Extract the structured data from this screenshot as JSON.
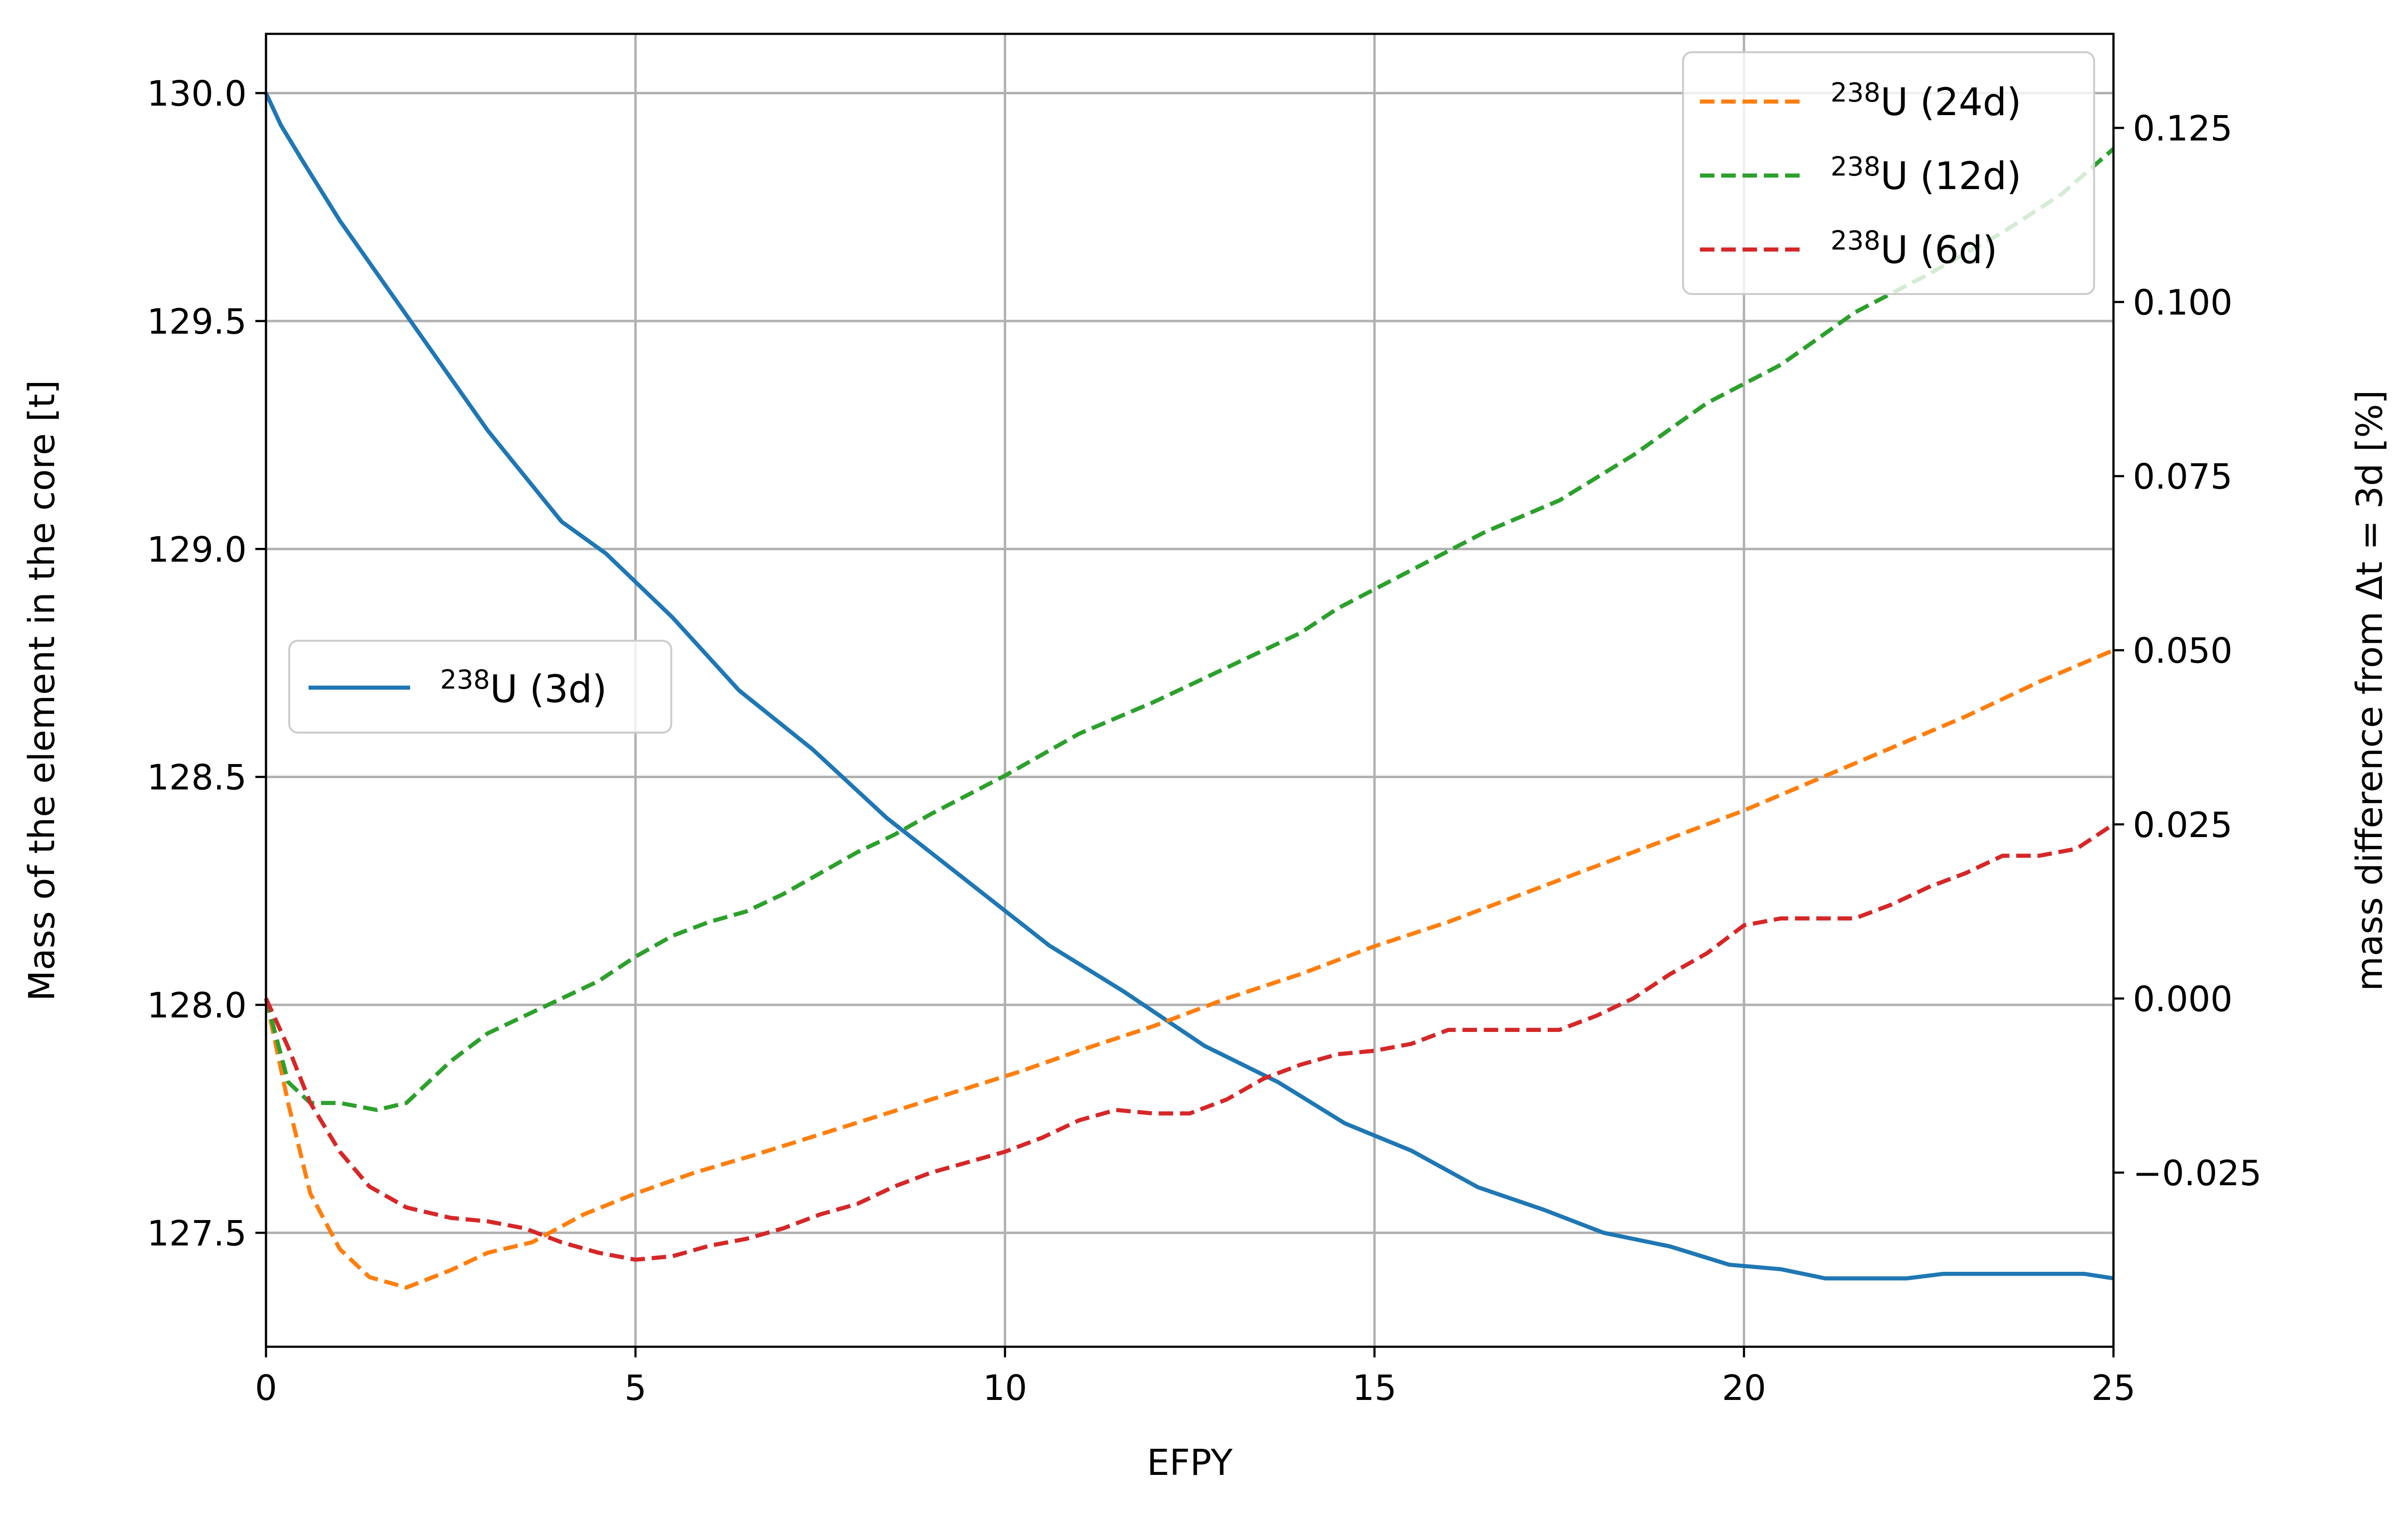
{
  "chart_data": {
    "type": "line",
    "xlabel": "EFPY",
    "ylabel_left": "Mass of the element in the core [t]",
    "ylabel_right": "mass difference from Δt = 3d [%]",
    "xlim": [
      0,
      25
    ],
    "ylim_left": [
      127.25,
      130.13
    ],
    "ylim_right": [
      -0.05,
      0.1385
    ],
    "x_ticks": [
      0,
      5,
      10,
      15,
      20,
      25
    ],
    "x_tick_labels": [
      "0",
      "5",
      "10",
      "15",
      "20",
      "25"
    ],
    "y_left_ticks": [
      127.5,
      128.0,
      128.5,
      129.0,
      129.5,
      130.0
    ],
    "y_left_tick_labels": [
      "127.5",
      "128.0",
      "128.5",
      "129.0",
      "129.5",
      "130.0"
    ],
    "y_right_ticks": [
      -0.025,
      0.0,
      0.025,
      0.05,
      0.075,
      0.1,
      0.125
    ],
    "y_right_tick_labels": [
      "−0.025",
      "0.000",
      "0.025",
      "0.050",
      "0.075",
      "0.100",
      "0.125"
    ],
    "grid": true,
    "legend_left": {
      "placement": "center-left",
      "entries": [
        "238U (3d)"
      ]
    },
    "legend_right": {
      "placement": "upper-right",
      "entries": [
        "238U (24d)",
        "238U (12d)",
        "238U (6d)"
      ]
    },
    "series": [
      {
        "name": "238U (3d)",
        "axis": "left",
        "style": "solid",
        "color": "#1f77b4",
        "x": [
          0,
          0.2,
          0.5,
          1,
          2,
          3,
          4,
          4.6,
          5.5,
          6.4,
          7.4,
          8.4,
          9.5,
          10.6,
          11.6,
          12.7,
          13.7,
          14.6,
          15.5,
          16.4,
          17.3,
          18.1,
          19,
          19.8,
          20.5,
          21.1,
          21.7,
          22.2,
          22.7,
          23.2,
          23.7,
          24.2,
          24.6,
          25
        ],
        "y": [
          130.0,
          129.93,
          129.85,
          129.72,
          129.49,
          129.26,
          129.06,
          128.99,
          128.85,
          128.69,
          128.56,
          128.41,
          128.27,
          128.13,
          128.03,
          127.91,
          127.83,
          127.74,
          127.68,
          127.6,
          127.55,
          127.5,
          127.47,
          127.43,
          127.42,
          127.4,
          127.4,
          127.4,
          127.41,
          127.41,
          127.41,
          127.41,
          127.41,
          127.4
        ]
      },
      {
        "name": "238U (24d)",
        "axis": "right",
        "style": "dashed",
        "color": "#ff7f0e",
        "x": [
          0,
          0.3,
          0.6,
          1,
          1.4,
          1.9,
          2.5,
          3,
          3.6,
          4.3,
          5,
          5.8,
          6.6,
          7.5,
          8.4,
          9.3,
          10.2,
          11,
          12,
          13,
          14,
          15,
          16,
          17,
          18,
          19,
          20,
          21,
          22,
          23,
          24,
          25
        ],
        "y": [
          0.0,
          -0.015,
          -0.028,
          -0.036,
          -0.04,
          -0.0415,
          -0.039,
          -0.0365,
          -0.035,
          -0.031,
          -0.028,
          -0.025,
          -0.0225,
          -0.0195,
          -0.0165,
          -0.0135,
          -0.0105,
          -0.0075,
          -0.004,
          0.0,
          0.0035,
          0.0075,
          0.011,
          0.015,
          0.019,
          0.023,
          0.027,
          0.0315,
          0.036,
          0.0405,
          0.0455,
          0.05
        ]
      },
      {
        "name": "238U (12d)",
        "axis": "right",
        "style": "dashed",
        "color": "#2ca02c",
        "x": [
          0,
          0.3,
          0.6,
          1,
          1.5,
          1.9,
          2.5,
          3,
          3.5,
          4,
          4.5,
          5,
          5.5,
          6,
          6.5,
          7,
          7.5,
          8,
          8.5,
          9,
          10,
          11,
          12,
          13,
          14,
          14.5,
          15.5,
          16.5,
          17.5,
          18.5,
          19.5,
          20.5,
          21.5,
          22.5,
          23.5,
          24.3,
          25
        ],
        "y": [
          0.0,
          -0.012,
          -0.015,
          -0.015,
          -0.016,
          -0.015,
          -0.009,
          -0.005,
          -0.0025,
          0.0,
          0.0025,
          0.006,
          0.009,
          0.011,
          0.0125,
          0.015,
          0.018,
          0.021,
          0.0235,
          0.0265,
          0.032,
          0.038,
          0.0425,
          0.0475,
          0.0525,
          0.056,
          0.0615,
          0.067,
          0.0715,
          0.078,
          0.0855,
          0.091,
          0.0985,
          0.104,
          0.11,
          0.1155,
          0.122
        ]
      },
      {
        "name": "238U (6d)",
        "axis": "right",
        "style": "dashed",
        "color": "#d62728",
        "x": [
          0,
          0.3,
          0.6,
          1,
          1.4,
          1.9,
          2.5,
          3,
          3.5,
          4,
          4.5,
          5,
          5.5,
          6,
          6.5,
          7,
          7.5,
          8,
          8.5,
          9,
          9.5,
          10,
          10.5,
          11,
          11.5,
          12,
          12.5,
          13,
          13.5,
          14,
          14.5,
          15,
          15.5,
          16,
          16.5,
          17,
          17.5,
          18,
          18.5,
          19,
          19.5,
          20,
          20.5,
          21,
          21.5,
          22,
          22.5,
          23,
          23.5,
          24,
          24.5,
          25
        ],
        "y": [
          0.0,
          -0.007,
          -0.015,
          -0.022,
          -0.027,
          -0.03,
          -0.0315,
          -0.032,
          -0.033,
          -0.035,
          -0.0365,
          -0.0375,
          -0.037,
          -0.0355,
          -0.0345,
          -0.033,
          -0.031,
          -0.0295,
          -0.027,
          -0.025,
          -0.0235,
          -0.022,
          -0.02,
          -0.0175,
          -0.016,
          -0.0165,
          -0.0165,
          -0.0145,
          -0.0115,
          -0.0095,
          -0.008,
          -0.0075,
          -0.0065,
          -0.0045,
          -0.0045,
          -0.0045,
          -0.0045,
          -0.0025,
          0.0,
          0.0035,
          0.0065,
          0.0105,
          0.0115,
          0.0115,
          0.0115,
          0.0135,
          0.016,
          0.018,
          0.0205,
          0.0205,
          0.0215,
          0.025
        ]
      }
    ]
  }
}
